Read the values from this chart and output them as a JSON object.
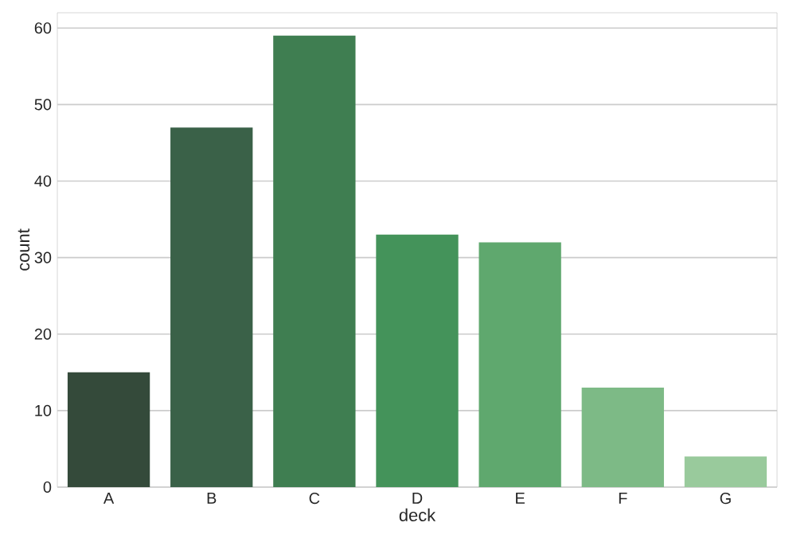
{
  "chart_data": {
    "type": "bar",
    "xlabel": "deck",
    "ylabel": "count",
    "categories": [
      "A",
      "B",
      "C",
      "D",
      "E",
      "F",
      "G"
    ],
    "values": [
      15,
      47,
      59,
      33,
      32,
      13,
      4
    ],
    "colors": [
      "#344a3a",
      "#3a6148",
      "#3f7e51",
      "#44935a",
      "#5fa86e",
      "#7dba86",
      "#99ca9c"
    ],
    "ylim": [
      0,
      62
    ],
    "yticks": [
      0,
      10,
      20,
      30,
      40,
      50,
      60
    ],
    "grid": "y"
  }
}
